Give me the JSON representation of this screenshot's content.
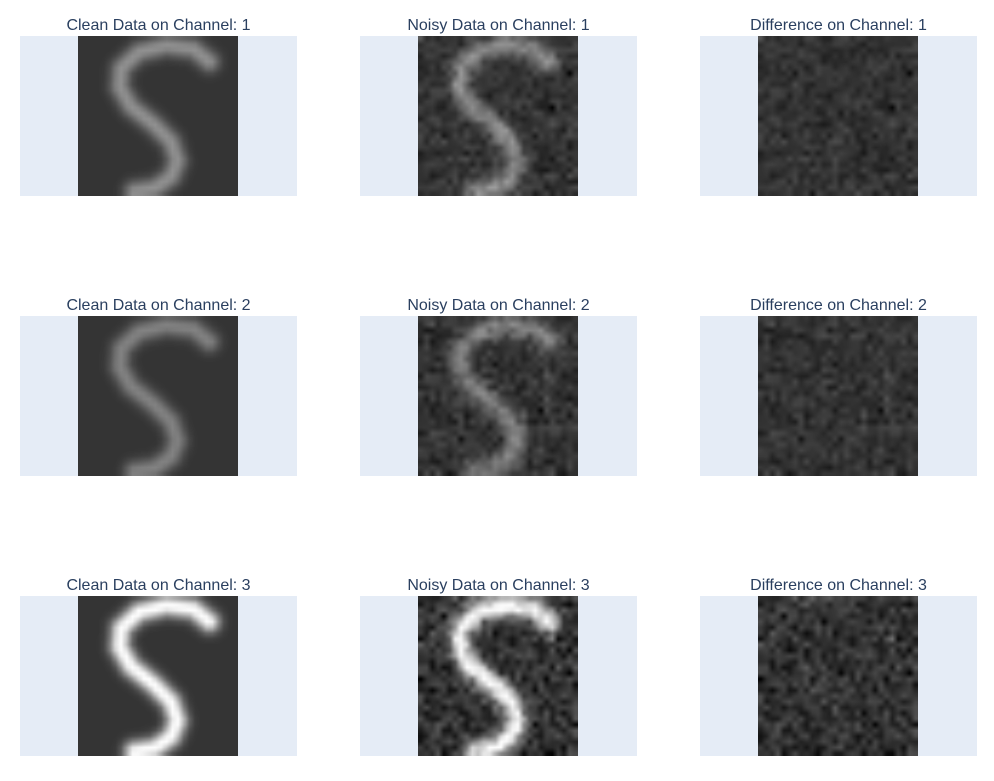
{
  "panels": [
    {
      "title": "Clean Data on Channel: 1",
      "kind": "clean",
      "channel": 1
    },
    {
      "title": "Noisy Data on Channel: 1",
      "kind": "noisy",
      "channel": 1
    },
    {
      "title": "Difference on Channel: 1",
      "kind": "diff",
      "channel": 1
    },
    {
      "title": "Clean Data on Channel: 2",
      "kind": "clean",
      "channel": 2
    },
    {
      "title": "Noisy Data on Channel: 2",
      "kind": "noisy",
      "channel": 2
    },
    {
      "title": "Difference on Channel: 2",
      "kind": "diff",
      "channel": 2
    },
    {
      "title": "Clean Data on Channel: 3",
      "kind": "clean",
      "channel": 3
    },
    {
      "title": "Noisy Data on Channel: 3",
      "kind": "noisy",
      "channel": 3
    },
    {
      "title": "Difference on Channel: 3",
      "kind": "diff",
      "channel": 3
    }
  ],
  "colors": {
    "plot_bg": "#e5ecf6",
    "title": "#2a3f5f"
  }
}
